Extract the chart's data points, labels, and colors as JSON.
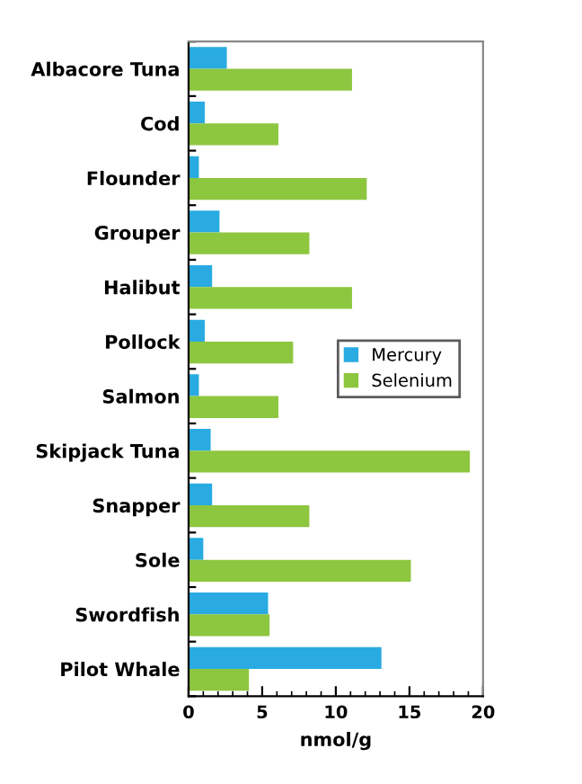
{
  "chart_data": {
    "type": "bar",
    "orientation": "horizontal",
    "xlabel": "nmol/g",
    "categories": [
      "Albacore Tuna",
      "Cod",
      "Flounder",
      "Grouper",
      "Halibut",
      "Pollock",
      "Salmon",
      "Skipjack Tuna",
      "Snapper",
      "Sole",
      "Swordfish",
      "Pilot Whale"
    ],
    "series": [
      {
        "name": "Mercury",
        "color": "#29abe2",
        "values": [
          2.6,
          1.1,
          0.7,
          2.1,
          1.6,
          1.1,
          0.7,
          1.5,
          1.6,
          1.0,
          5.4,
          13.1
        ]
      },
      {
        "name": "Selenium",
        "color": "#8dc63f",
        "values": [
          11.1,
          6.1,
          12.1,
          8.2,
          11.1,
          7.1,
          6.1,
          19.1,
          8.2,
          15.1,
          5.5,
          4.1
        ]
      }
    ],
    "xlim": [
      0,
      20
    ],
    "xticks": [
      0,
      5,
      10,
      15,
      20
    ],
    "grid": false,
    "legend": "right"
  }
}
